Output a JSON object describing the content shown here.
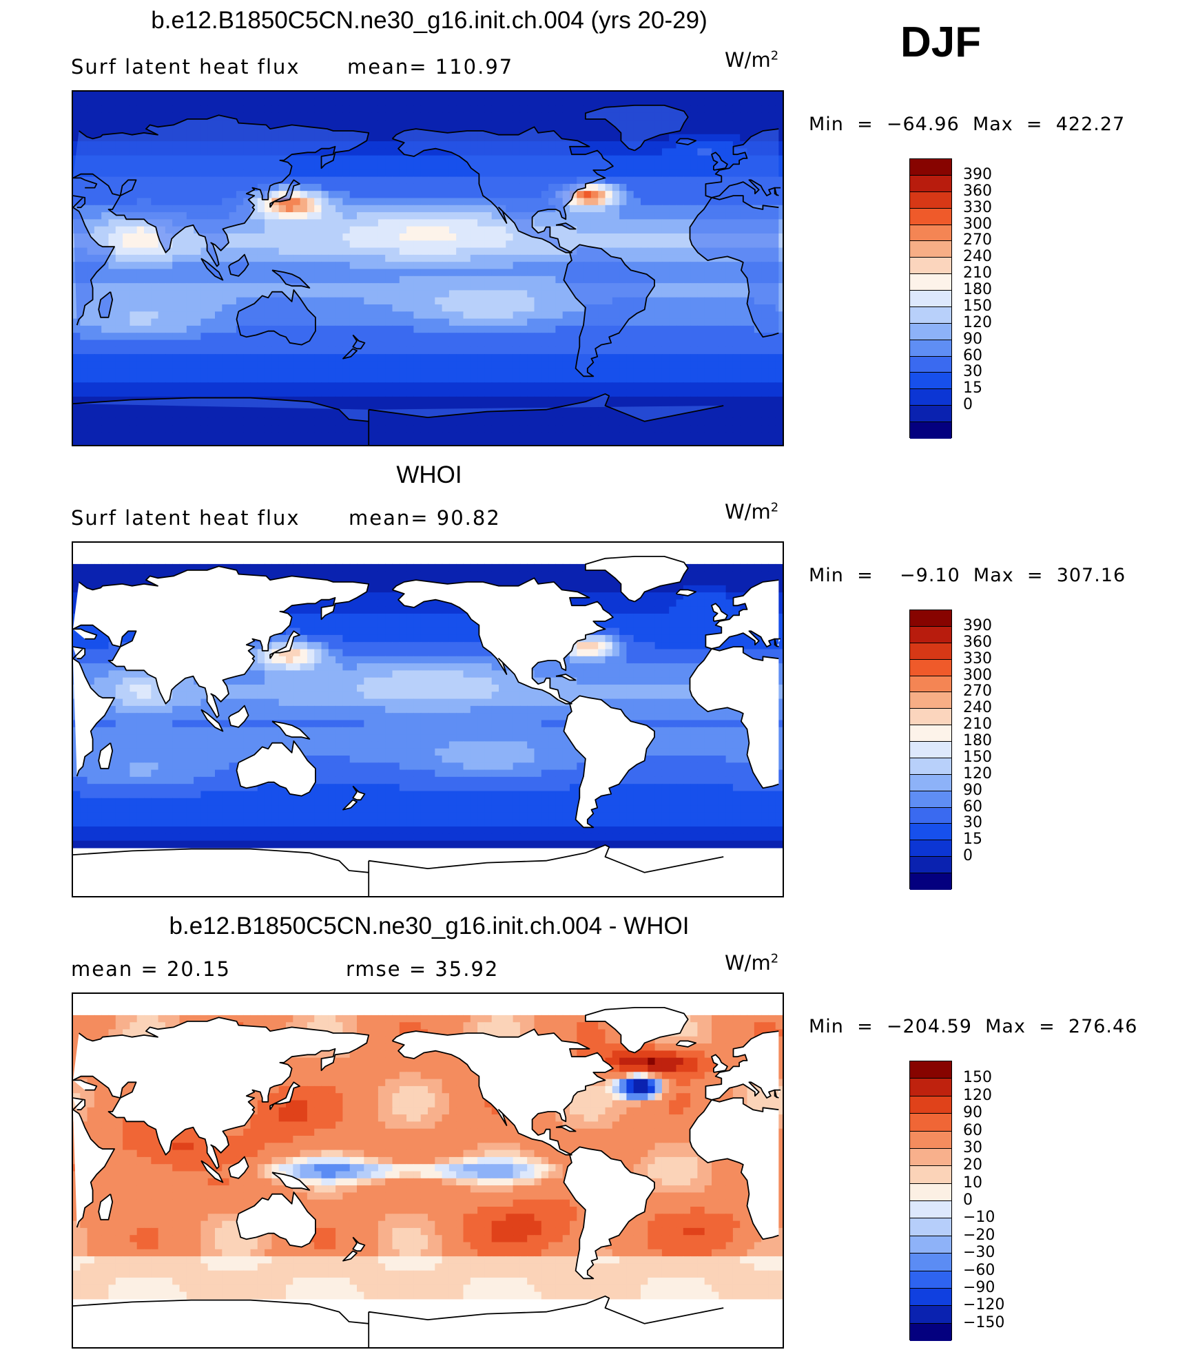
{
  "season": "DJF",
  "units": "W/m",
  "units_exp": "2",
  "palette": {
    "abs": [
      "#04007f",
      "#0a22b0",
      "#0c36d4",
      "#1750ec",
      "#3a6af0",
      "#5f8ef4",
      "#8db2f8",
      "#b8d0fa",
      "#dde8fc",
      "#fdf3ea",
      "#fbd5bd",
      "#f7ae86",
      "#f48554",
      "#ef5a2a",
      "#d73816",
      "#b81c0d",
      "#870400"
    ],
    "diff": [
      "#04007f",
      "#0a22b0",
      "#1040e0",
      "#2e64f0",
      "#5b8cf4",
      "#8eb2f8",
      "#b6cefa",
      "#dde8fc",
      "#fcf0e4",
      "#fbd3b8",
      "#f8b08c",
      "#f48c5e",
      "#f06636",
      "#e0421a",
      "#bf220e",
      "#870400"
    ]
  },
  "panels": [
    {
      "title": "b.e12.B1850C5CN.ne30_g16.init.ch.004 (yrs 20-29)",
      "left_label": "Surf latent heat flux",
      "mean_label": "mean=  110.97",
      "stats": "Min  =  −64.96  Max  =  422.27",
      "levels": [
        "390",
        "360",
        "330",
        "300",
        "270",
        "240",
        "210",
        "180",
        "150",
        "120",
        "90",
        "60",
        "30",
        "15",
        "0"
      ],
      "field": "model"
    },
    {
      "title": "WHOI",
      "left_label": "Surf latent heat flux",
      "mean_label": "mean=   90.82",
      "stats": "Min  =    −9.10  Max  =  307.16",
      "levels": [
        "390",
        "360",
        "330",
        "300",
        "270",
        "240",
        "210",
        "180",
        "150",
        "120",
        "90",
        "60",
        "30",
        "15",
        "0"
      ],
      "field": "obs"
    },
    {
      "title": "b.e12.B1850C5CN.ne30_g16.init.ch.004 - WHOI",
      "left_label": "mean  =    20.15",
      "mean_label": "rmse  =    35.92",
      "stats": "Min  =  −204.59  Max  =  276.46",
      "levels": [
        "150",
        "120",
        "90",
        "60",
        "30",
        "20",
        "10",
        "0",
        "−10",
        "−20",
        "−30",
        "−60",
        "−90",
        "−120",
        "−150"
      ],
      "field": "diff"
    }
  ]
}
